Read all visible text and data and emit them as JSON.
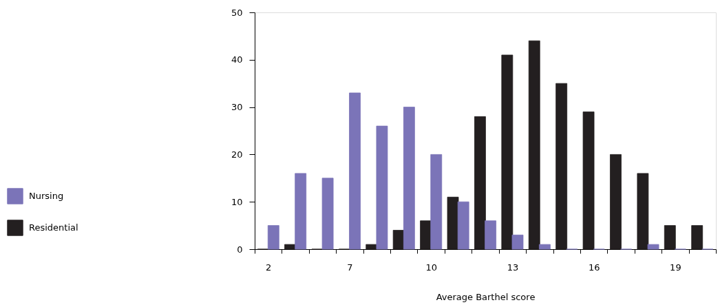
{
  "chart_data": {
    "type": "bar",
    "xlabel": "Average Barthel score",
    "categories": [
      "2",
      null,
      null,
      "7",
      null,
      null,
      "10",
      null,
      null,
      "13",
      null,
      null,
      "16",
      null,
      null,
      "19",
      null
    ],
    "series": [
      {
        "name": "Residential",
        "color": "#231f20",
        "values": [
          0,
          1,
          0,
          0,
          1,
          4,
          6,
          11,
          28,
          41,
          44,
          35,
          29,
          20,
          16,
          5,
          5
        ]
      },
      {
        "name": "Nursing",
        "color": "#7b74b8",
        "values": [
          5,
          16,
          15,
          33,
          26,
          30,
          20,
          10,
          6,
          3,
          1,
          0,
          0,
          0,
          1,
          0,
          0
        ]
      }
    ],
    "ylim": [
      0,
      50
    ],
    "yticks": [
      0,
      10,
      20,
      30,
      40,
      50
    ],
    "grid": false,
    "legend": "left"
  }
}
